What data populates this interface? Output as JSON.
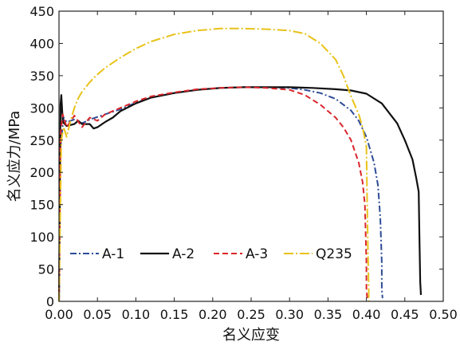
{
  "chart_data": {
    "type": "line",
    "xlabel": "名义应变",
    "ylabel": "名义应力/MPa",
    "xlim": [
      0,
      0.5
    ],
    "ylim": [
      0,
      450
    ],
    "xticks": [
      "0.00",
      "0.05",
      "0.10",
      "0.15",
      "0.20",
      "0.25",
      "0.30",
      "0.35",
      "0.40",
      "0.45",
      "0.50"
    ],
    "yticks": [
      "0",
      "50",
      "100",
      "150",
      "200",
      "250",
      "300",
      "350",
      "400",
      "450"
    ],
    "grid": false,
    "legend": "bottom",
    "series": [
      {
        "name": "A-1",
        "color": "#2e4c96",
        "dash": "8 3 2 3",
        "width": 2,
        "x": [
          0,
          0.002,
          0.006,
          0.01,
          0.02,
          0.03,
          0.04,
          0.05,
          0.06,
          0.08,
          0.1,
          0.12,
          0.15,
          0.18,
          0.21,
          0.24,
          0.27,
          0.3,
          0.32,
          0.34,
          0.36,
          0.38,
          0.39,
          0.4,
          0.41,
          0.415,
          0.418,
          0.42,
          0.42,
          0.421
        ],
        "y": [
          0,
          240,
          285,
          278,
          282,
          276,
          282,
          286,
          290,
          298,
          308,
          316,
          323,
          328,
          331,
          332,
          332,
          331,
          328,
          323,
          314,
          296,
          280,
          255,
          215,
          180,
          130,
          60,
          20,
          5
        ]
      },
      {
        "name": "A-2",
        "color": "#111111",
        "dash": "",
        "width": 2.2,
        "x": [
          0,
          0.002,
          0.003,
          0.005,
          0.01,
          0.02,
          0.025,
          0.03,
          0.04,
          0.045,
          0.05,
          0.06,
          0.07,
          0.08,
          0.1,
          0.12,
          0.15,
          0.18,
          0.21,
          0.24,
          0.27,
          0.3,
          0.33,
          0.36,
          0.38,
          0.4,
          0.42,
          0.44,
          0.45,
          0.46,
          0.465,
          0.468,
          0.469,
          0.47,
          0.471
        ],
        "y": [
          0,
          305,
          320,
          278,
          272,
          275,
          280,
          275,
          275,
          268,
          270,
          278,
          285,
          295,
          307,
          316,
          323,
          328,
          331,
          332,
          332,
          332,
          331,
          329,
          327,
          322,
          307,
          276,
          250,
          220,
          190,
          170,
          100,
          30,
          10
        ]
      },
      {
        "name": "A-3",
        "color": "#d9262b",
        "dash": "7 4",
        "width": 2,
        "x": [
          0,
          0.002,
          0.005,
          0.01,
          0.02,
          0.03,
          0.04,
          0.05,
          0.06,
          0.08,
          0.1,
          0.12,
          0.15,
          0.18,
          0.21,
          0.24,
          0.27,
          0.3,
          0.32,
          0.34,
          0.36,
          0.37,
          0.38,
          0.39,
          0.395,
          0.398,
          0.4,
          0.4,
          0.401
        ],
        "y": [
          0,
          260,
          290,
          270,
          288,
          270,
          285,
          280,
          290,
          300,
          310,
          318,
          324,
          329,
          331,
          332,
          331,
          328,
          320,
          305,
          285,
          270,
          250,
          215,
          185,
          150,
          60,
          20,
          5
        ]
      },
      {
        "name": "Q235",
        "color": "#e8c21a",
        "dash": "12 3 2 3",
        "width": 2,
        "x": [
          0,
          0.003,
          0.006,
          0.01,
          0.015,
          0.02,
          0.025,
          0.03,
          0.04,
          0.05,
          0.06,
          0.08,
          0.1,
          0.12,
          0.15,
          0.18,
          0.21,
          0.24,
          0.27,
          0.3,
          0.32,
          0.34,
          0.36,
          0.37,
          0.38,
          0.39,
          0.395,
          0.4,
          0.401,
          0.402,
          0.403,
          0.403
        ],
        "y": [
          0,
          250,
          270,
          255,
          280,
          300,
          315,
          325,
          340,
          352,
          362,
          378,
          392,
          403,
          414,
          420,
          423,
          423,
          422,
          420,
          415,
          400,
          375,
          350,
          318,
          290,
          270,
          240,
          150,
          80,
          20,
          0
        ]
      }
    ]
  }
}
